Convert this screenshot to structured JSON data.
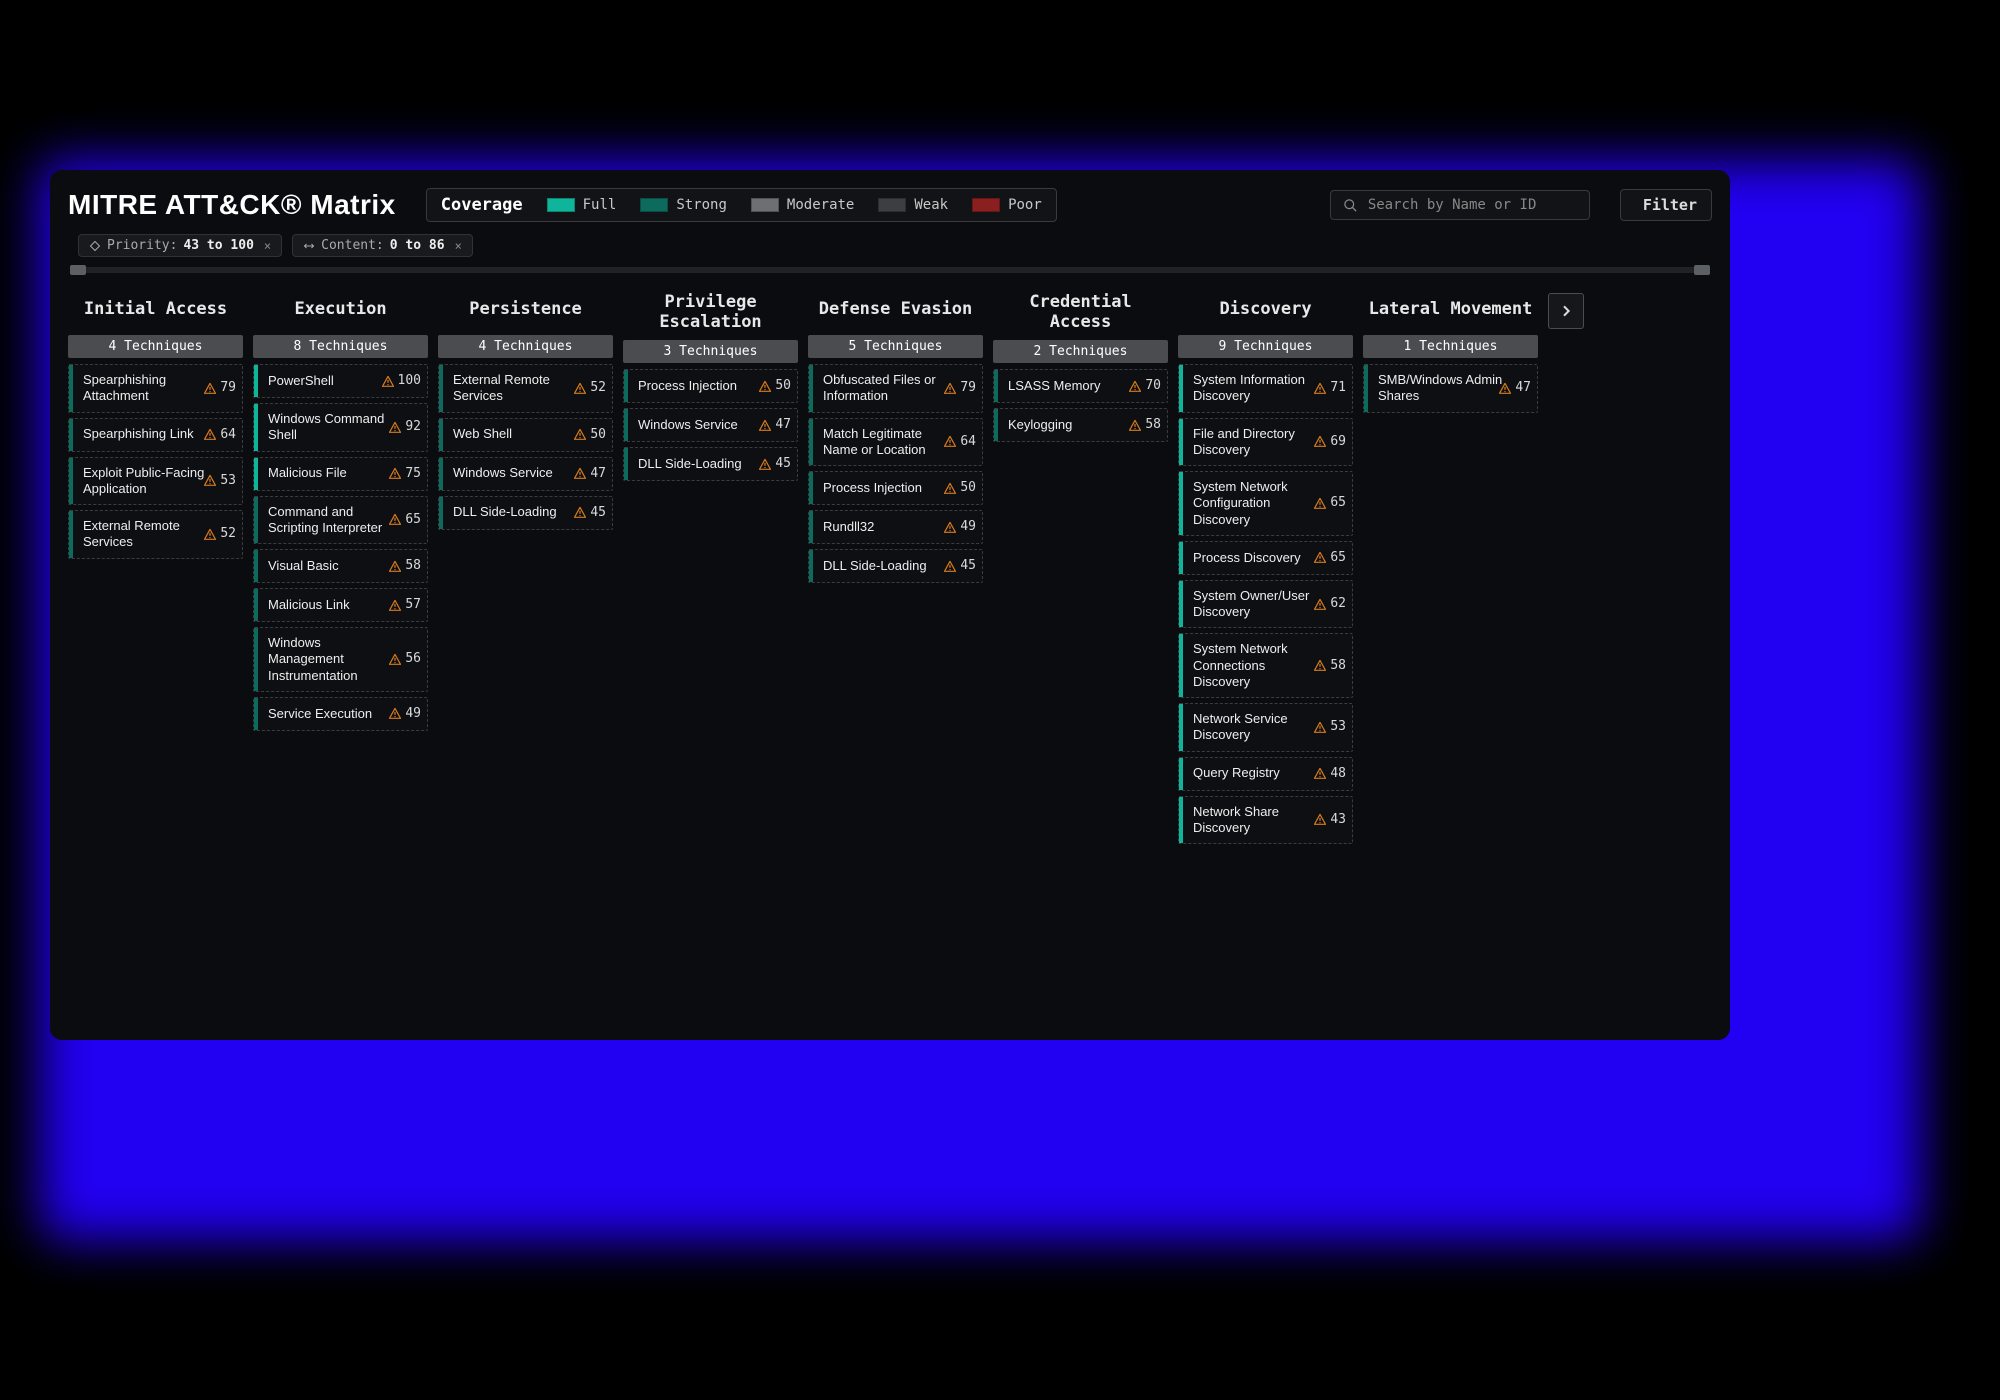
{
  "colors": {
    "panel_bg": "#0a0c10",
    "cell_bg": "#0d0f12",
    "cell_border": "#3a3c3f",
    "header_bar": "#4a4c50",
    "glow": "#2400ff",
    "coverage": {
      "full": {
        "label": "Full",
        "swatch": "#0fb59a"
      },
      "strong": {
        "label": "Strong",
        "swatch": "#0c6b5c"
      },
      "moderate": {
        "label": "Moderate",
        "swatch": "#6d6f73"
      },
      "weak": {
        "label": "Weak",
        "swatch": "#3c3e41"
      },
      "poor": {
        "label": "Poor",
        "swatch": "#8a1f1f"
      }
    },
    "warning_icon": "#d67a1f"
  },
  "header": {
    "title": "MITRE ATT&CK® Matrix",
    "legend_title": "Coverage",
    "search_placeholder": "Search by Name or ID",
    "filter_label": "Filter"
  },
  "chips": {
    "priority": {
      "label": "Priority:",
      "value": "43 to 100"
    },
    "content": {
      "label": "Content:",
      "value": "0 to 86"
    }
  },
  "techniques_suffix": "Techniques",
  "columns": [
    {
      "name": "Initial Access",
      "items": [
        {
          "label": "Spearphishing Attachment",
          "score": 79,
          "bar": "strong"
        },
        {
          "label": "Spearphishing Link",
          "score": 64,
          "bar": "strong"
        },
        {
          "label": "Exploit Public-Facing Application",
          "score": 53,
          "bar": "strong"
        },
        {
          "label": "External Remote Services",
          "score": 52,
          "bar": "strong"
        }
      ]
    },
    {
      "name": "Execution",
      "items": [
        {
          "label": "PowerShell",
          "score": 100,
          "bar": "full"
        },
        {
          "label": "Windows Command Shell",
          "score": 92,
          "bar": "full"
        },
        {
          "label": "Malicious File",
          "score": 75,
          "bar": "full"
        },
        {
          "label": "Command and Scripting Interpreter",
          "score": 65,
          "bar": "strong"
        },
        {
          "label": "Visual Basic",
          "score": 58,
          "bar": "strong"
        },
        {
          "label": "Malicious Link",
          "score": 57,
          "bar": "strong"
        },
        {
          "label": "Windows Management Instrumentation",
          "score": 56,
          "bar": "strong"
        },
        {
          "label": "Service Execution",
          "score": 49,
          "bar": "strong"
        }
      ]
    },
    {
      "name": "Persistence",
      "items": [
        {
          "label": "External Remote Services",
          "score": 52,
          "bar": "strong"
        },
        {
          "label": "Web Shell",
          "score": 50,
          "bar": "strong"
        },
        {
          "label": "Windows Service",
          "score": 47,
          "bar": "strong"
        },
        {
          "label": "DLL Side-Loading",
          "score": 45,
          "bar": "strong"
        }
      ]
    },
    {
      "name": "Privilege Escalation",
      "items": [
        {
          "label": "Process Injection",
          "score": 50,
          "bar": "strong"
        },
        {
          "label": "Windows Service",
          "score": 47,
          "bar": "strong"
        },
        {
          "label": "DLL Side-Loading",
          "score": 45,
          "bar": "strong"
        }
      ]
    },
    {
      "name": "Defense Evasion",
      "items": [
        {
          "label": "Obfuscated Files or Information",
          "score": 79,
          "bar": "strong"
        },
        {
          "label": "Match Legitimate Name or Location",
          "score": 64,
          "bar": "strong"
        },
        {
          "label": "Process Injection",
          "score": 50,
          "bar": "strong"
        },
        {
          "label": "Rundll32",
          "score": 49,
          "bar": "strong"
        },
        {
          "label": "DLL Side-Loading",
          "score": 45,
          "bar": "strong"
        }
      ]
    },
    {
      "name": "Credential Access",
      "items": [
        {
          "label": "LSASS Memory",
          "score": 70,
          "bar": "strong"
        },
        {
          "label": "Keylogging",
          "score": 58,
          "bar": "strong"
        }
      ]
    },
    {
      "name": "Discovery",
      "items": [
        {
          "label": "System Information Discovery",
          "score": 71,
          "bar": "full"
        },
        {
          "label": "File and Directory Discovery",
          "score": 69,
          "bar": "full"
        },
        {
          "label": "System Network Configuration Discovery",
          "score": 65,
          "bar": "full"
        },
        {
          "label": "Process Discovery",
          "score": 65,
          "bar": "full"
        },
        {
          "label": "System Owner/User Discovery",
          "score": 62,
          "bar": "full"
        },
        {
          "label": "System Network Connections Discovery",
          "score": 58,
          "bar": "full"
        },
        {
          "label": "Network Service Discovery",
          "score": 53,
          "bar": "full"
        },
        {
          "label": "Query Registry",
          "score": 48,
          "bar": "full"
        },
        {
          "label": "Network Share Discovery",
          "score": 43,
          "bar": "full"
        }
      ]
    },
    {
      "name": "Lateral Movement",
      "items": [
        {
          "label": "SMB/Windows Admin Shares",
          "score": 47,
          "bar": "strong"
        }
      ]
    }
  ]
}
